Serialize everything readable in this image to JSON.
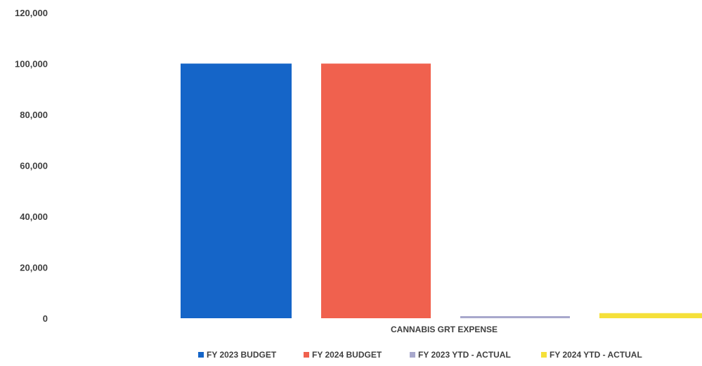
{
  "chart_data": {
    "type": "bar",
    "categories": [
      "CANNABIS GRT EXPENSE"
    ],
    "series": [
      {
        "name": "FY 2023 BUDGET",
        "values": [
          100000
        ],
        "color": "#1565c8"
      },
      {
        "name": "FY 2024 BUDGET",
        "values": [
          100000
        ],
        "color": "#f0614e"
      },
      {
        "name": "FY 2023 YTD - ACTUAL",
        "values": [
          600
        ],
        "color": "#a8a8cc"
      },
      {
        "name": "FY 2024 YTD - ACTUAL",
        "values": [
          2000
        ],
        "color": "#f5e03a"
      }
    ],
    "ylim": [
      0,
      120000
    ],
    "yticks": [
      "0",
      "20,000",
      "40,000",
      "60,000",
      "80,000",
      "100,000",
      "120,000"
    ],
    "ytick_values": [
      0,
      20000,
      40000,
      60000,
      80000,
      100000,
      120000
    ],
    "grid": false,
    "legend_position": "bottom",
    "title": "",
    "xlabel": "",
    "ylabel": ""
  }
}
